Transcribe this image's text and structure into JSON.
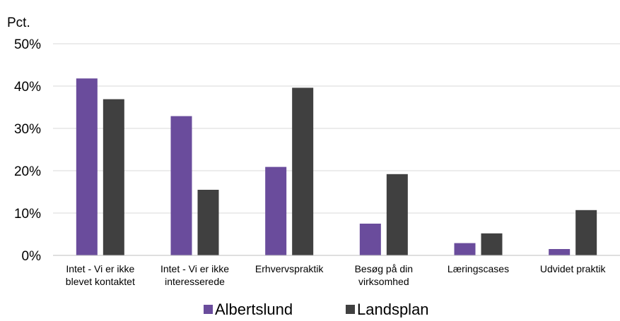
{
  "chart_data": {
    "type": "bar",
    "ylabel": "Pct.",
    "ylim": [
      0,
      50
    ],
    "yticks": [
      "0%",
      "10%",
      "20%",
      "30%",
      "40%",
      "50%"
    ],
    "ytick_values": [
      0,
      10,
      20,
      30,
      40,
      50
    ],
    "categories": [
      [
        "Intet - Vi er ikke",
        "blevet kontaktet"
      ],
      [
        "Intet - Vi er ikke",
        "interesserede"
      ],
      [
        "Erhvervspraktik"
      ],
      [
        "Besøg på din",
        "virksomhed"
      ],
      [
        "Læringscases"
      ],
      [
        "Udvidet praktik"
      ]
    ],
    "series": [
      {
        "name": "Albertslund",
        "color": "#6a4c9c",
        "values": [
          41.8,
          32.9,
          20.9,
          7.5,
          2.9,
          1.5
        ]
      },
      {
        "name": "Landsplan",
        "color": "#404040",
        "values": [
          36.9,
          15.5,
          39.6,
          19.2,
          5.2,
          10.7
        ]
      }
    ],
    "grid": true,
    "legend_position": "bottom"
  }
}
